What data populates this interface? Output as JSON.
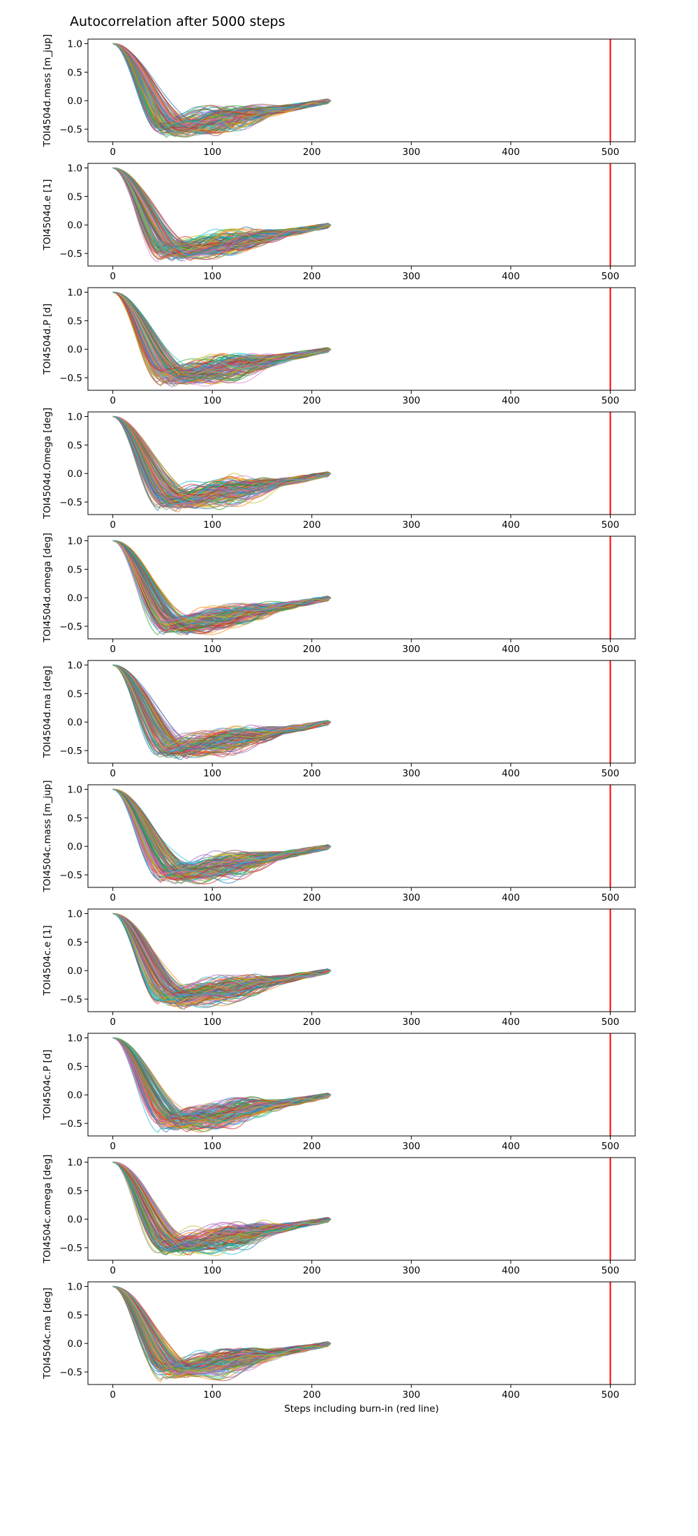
{
  "figure": {
    "title": "Autocorrelation after 5000 steps",
    "xlabel": "Steps including burn-in (red line)"
  },
  "chart_data": [
    {
      "type": "line",
      "ylabel": "TOI4504d.mass [m_jup]",
      "xlim": [
        -25,
        525
      ],
      "ylim": [
        -0.72,
        1.08
      ],
      "xticks": [
        0,
        100,
        200,
        300,
        400,
        500
      ],
      "yticks": [
        -0.5,
        0.0,
        0.5,
        1.0
      ],
      "burnin_line_x": 500,
      "data_x_range": [
        0,
        220
      ],
      "trace_count": 120,
      "trace_min_range": [
        -0.6,
        -0.35
      ],
      "grid": false
    },
    {
      "type": "line",
      "ylabel": "TOI4504d.e [1]",
      "xlim": [
        -25,
        525
      ],
      "ylim": [
        -0.72,
        1.08
      ],
      "xticks": [
        0,
        100,
        200,
        300,
        400,
        500
      ],
      "yticks": [
        -0.5,
        0.0,
        0.5,
        1.0
      ],
      "burnin_line_x": 500,
      "data_x_range": [
        0,
        220
      ],
      "trace_count": 120,
      "trace_min_range": [
        -0.6,
        -0.35
      ],
      "grid": false
    },
    {
      "type": "line",
      "ylabel": "TOI4504d.P [d]",
      "xlim": [
        -25,
        525
      ],
      "ylim": [
        -0.72,
        1.08
      ],
      "xticks": [
        0,
        100,
        200,
        300,
        400,
        500
      ],
      "yticks": [
        -0.5,
        0.0,
        0.5,
        1.0
      ],
      "burnin_line_x": 500,
      "data_x_range": [
        0,
        220
      ],
      "trace_count": 120,
      "trace_min_range": [
        -0.6,
        -0.35
      ],
      "grid": false
    },
    {
      "type": "line",
      "ylabel": "TOI4504d.Omega [deg]",
      "xlim": [
        -25,
        525
      ],
      "ylim": [
        -0.72,
        1.08
      ],
      "xticks": [
        0,
        100,
        200,
        300,
        400,
        500
      ],
      "yticks": [
        -0.5,
        0.0,
        0.5,
        1.0
      ],
      "burnin_line_x": 500,
      "data_x_range": [
        0,
        220
      ],
      "trace_count": 120,
      "trace_min_range": [
        -0.6,
        -0.35
      ],
      "grid": false
    },
    {
      "type": "line",
      "ylabel": "TOI4504d.omega [deg]",
      "xlim": [
        -25,
        525
      ],
      "ylim": [
        -0.72,
        1.08
      ],
      "xticks": [
        0,
        100,
        200,
        300,
        400,
        500
      ],
      "yticks": [
        -0.5,
        0.0,
        0.5,
        1.0
      ],
      "burnin_line_x": 500,
      "data_x_range": [
        0,
        220
      ],
      "trace_count": 120,
      "trace_min_range": [
        -0.6,
        -0.35
      ],
      "grid": false
    },
    {
      "type": "line",
      "ylabel": "TOI4504d.ma [deg]",
      "xlim": [
        -25,
        525
      ],
      "ylim": [
        -0.72,
        1.08
      ],
      "xticks": [
        0,
        100,
        200,
        300,
        400,
        500
      ],
      "yticks": [
        -0.5,
        0.0,
        0.5,
        1.0
      ],
      "burnin_line_x": 500,
      "data_x_range": [
        0,
        220
      ],
      "trace_count": 120,
      "trace_min_range": [
        -0.6,
        -0.35
      ],
      "grid": false
    },
    {
      "type": "line",
      "ylabel": "TOI4504c.mass [m_jup]",
      "xlim": [
        -25,
        525
      ],
      "ylim": [
        -0.72,
        1.08
      ],
      "xticks": [
        0,
        100,
        200,
        300,
        400,
        500
      ],
      "yticks": [
        -0.5,
        0.0,
        0.5,
        1.0
      ],
      "burnin_line_x": 500,
      "data_x_range": [
        0,
        220
      ],
      "trace_count": 120,
      "trace_min_range": [
        -0.6,
        -0.35
      ],
      "grid": false
    },
    {
      "type": "line",
      "ylabel": "TOI4504c.e [1]",
      "xlim": [
        -25,
        525
      ],
      "ylim": [
        -0.72,
        1.08
      ],
      "xticks": [
        0,
        100,
        200,
        300,
        400,
        500
      ],
      "yticks": [
        -0.5,
        0.0,
        0.5,
        1.0
      ],
      "burnin_line_x": 500,
      "data_x_range": [
        0,
        220
      ],
      "trace_count": 120,
      "trace_min_range": [
        -0.6,
        -0.35
      ],
      "grid": false
    },
    {
      "type": "line",
      "ylabel": "TOI4504c.P [d]",
      "xlim": [
        -25,
        525
      ],
      "ylim": [
        -0.72,
        1.08
      ],
      "xticks": [
        0,
        100,
        200,
        300,
        400,
        500
      ],
      "yticks": [
        -0.5,
        0.0,
        0.5,
        1.0
      ],
      "burnin_line_x": 500,
      "data_x_range": [
        0,
        220
      ],
      "trace_count": 120,
      "trace_min_range": [
        -0.6,
        -0.35
      ],
      "grid": false
    },
    {
      "type": "line",
      "ylabel": "TOI4504c.omega [deg]",
      "xlim": [
        -25,
        525
      ],
      "ylim": [
        -0.72,
        1.08
      ],
      "xticks": [
        0,
        100,
        200,
        300,
        400,
        500
      ],
      "yticks": [
        -0.5,
        0.0,
        0.5,
        1.0
      ],
      "burnin_line_x": 500,
      "data_x_range": [
        0,
        220
      ],
      "trace_count": 120,
      "trace_min_range": [
        -0.6,
        -0.35
      ],
      "grid": false
    },
    {
      "type": "line",
      "ylabel": "TOI4504c.ma [deg]",
      "xlim": [
        -25,
        525
      ],
      "ylim": [
        -0.72,
        1.08
      ],
      "xticks": [
        0,
        100,
        200,
        300,
        400,
        500
      ],
      "yticks": [
        -0.5,
        0.0,
        0.5,
        1.0
      ],
      "burnin_line_x": 500,
      "data_x_range": [
        0,
        220
      ],
      "trace_count": 120,
      "trace_min_range": [
        -0.6,
        -0.35
      ],
      "grid": false
    }
  ],
  "colors": {
    "palette": [
      "#1f77b4",
      "#ff7f0e",
      "#2ca02c",
      "#d62728",
      "#9467bd",
      "#8c564b",
      "#e377c2",
      "#7f7f7f",
      "#bcbd22",
      "#17becf"
    ],
    "burnin_line": "#ff0000",
    "axes": "#000000"
  }
}
